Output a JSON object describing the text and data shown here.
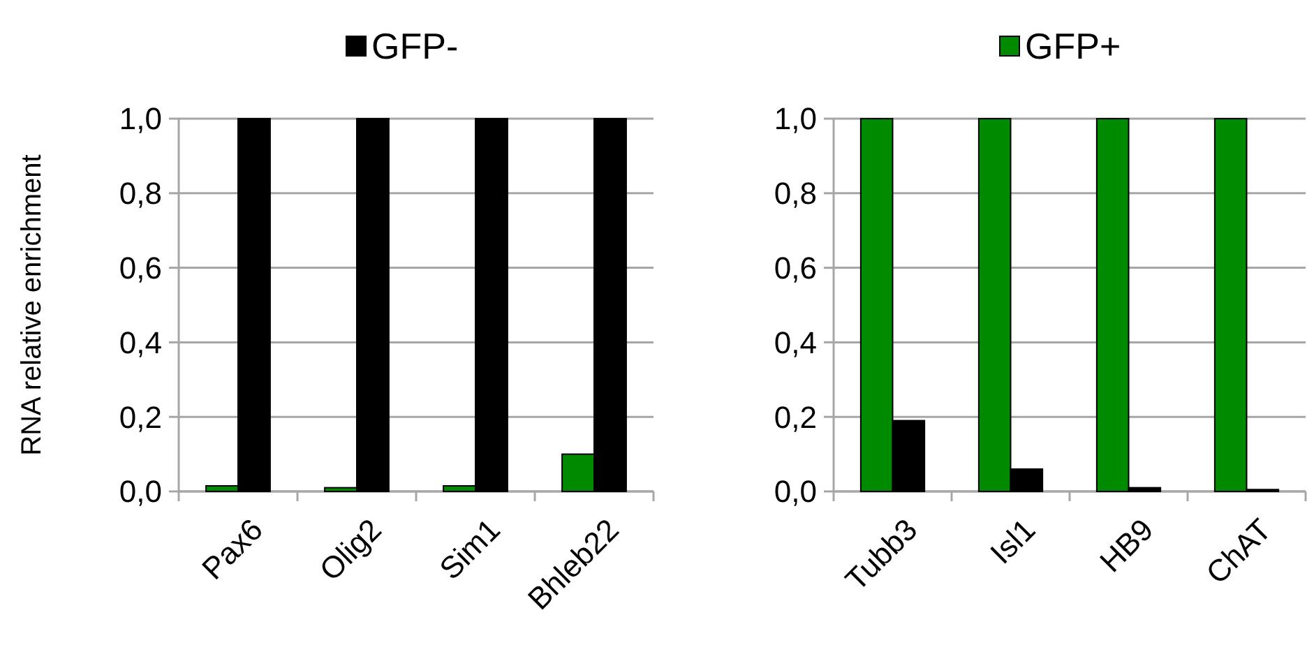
{
  "chart_data": [
    {
      "type": "bar",
      "ylabel": "RNA relative enrichment",
      "categories": [
        "Pax6",
        "Olig2",
        "Sim1",
        "Bhleb22"
      ],
      "series": [
        {
          "color": "#008a00",
          "values": [
            0.015,
            0.01,
            0.015,
            0.1
          ]
        },
        {
          "name": "GFP-",
          "color": "#000000",
          "values": [
            1,
            1,
            1,
            1
          ]
        }
      ],
      "ylim": [
        0,
        1
      ],
      "yticks": [
        {
          "value": 0,
          "label": "0,0"
        },
        {
          "value": 0.2,
          "label": "0,2"
        },
        {
          "value": 0.4,
          "label": "0,4"
        },
        {
          "value": 0.6,
          "label": "0,6"
        },
        {
          "value": 0.8,
          "label": "0,8"
        },
        {
          "value": 1,
          "label": "1,0"
        }
      ],
      "grid": "y",
      "legend": "top"
    },
    {
      "type": "bar",
      "categories": [
        "Tubb3",
        "Isl1",
        "HB9",
        "ChAT"
      ],
      "series": [
        {
          "name": "GFP+",
          "color": "#008a00",
          "values": [
            1,
            1,
            1,
            1
          ]
        },
        {
          "color": "#000000",
          "values": [
            0.19,
            0.06,
            0.01,
            0.005
          ]
        }
      ],
      "ylim": [
        0,
        1
      ],
      "yticks": [
        {
          "value": 0,
          "label": "0,0"
        },
        {
          "value": 0.2,
          "label": "0,2"
        },
        {
          "value": 0.4,
          "label": "0,4"
        },
        {
          "value": 0.6,
          "label": "0,6"
        },
        {
          "value": 0.8,
          "label": "0,8"
        },
        {
          "value": 1,
          "label": "1,0"
        }
      ],
      "grid": "y",
      "legend": "top"
    }
  ]
}
